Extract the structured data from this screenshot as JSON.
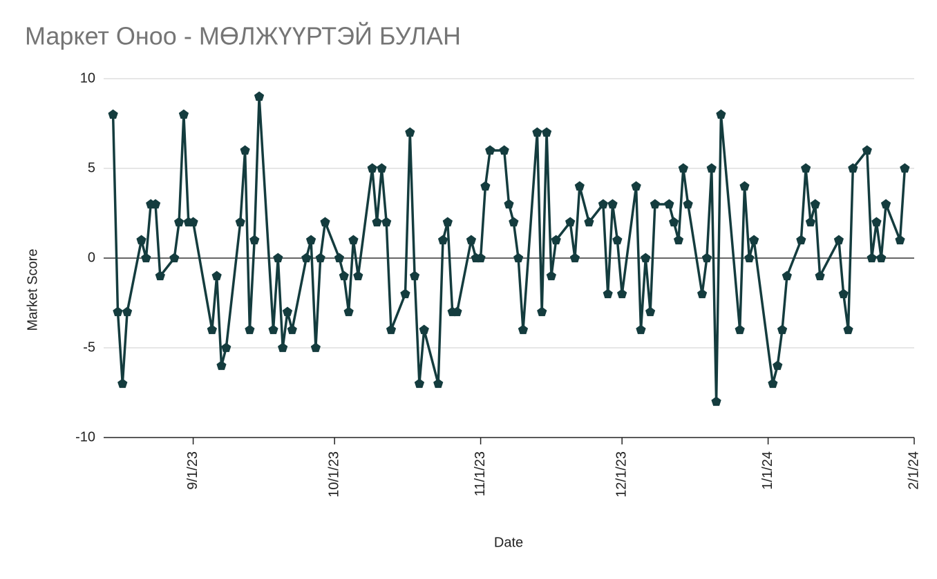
{
  "chart_data": {
    "type": "line",
    "title": "Маркет Оноо - МӨЛЖҮҮРТЭЙ БУЛАН",
    "x_label": "Date",
    "y_label": "Market Score",
    "x": [
      "8/15/23",
      "8/16/23",
      "8/17/23",
      "8/18/23",
      "8/21/23",
      "8/22/23",
      "8/23/23",
      "8/24/23",
      "8/25/23",
      "8/28/23",
      "8/29/23",
      "8/30/23",
      "8/31/23",
      "9/1/23",
      "9/5/23",
      "9/6/23",
      "9/7/23",
      "9/8/23",
      "9/11/23",
      "9/12/23",
      "9/13/23",
      "9/14/23",
      "9/15/23",
      "9/18/23",
      "9/19/23",
      "9/20/23",
      "9/21/23",
      "9/22/23",
      "9/25/23",
      "9/26/23",
      "9/27/23",
      "9/28/23",
      "9/29/23",
      "10/2/23",
      "10/3/23",
      "10/4/23",
      "10/5/23",
      "10/6/23",
      "10/9/23",
      "10/10/23",
      "10/11/23",
      "10/12/23",
      "10/13/23",
      "10/16/23",
      "10/17/23",
      "10/18/23",
      "10/19/23",
      "10/20/23",
      "10/23/23",
      "10/24/23",
      "10/25/23",
      "10/26/23",
      "10/27/23",
      "10/30/23",
      "10/31/23",
      "11/1/23",
      "11/2/23",
      "11/3/23",
      "11/6/23",
      "11/7/23",
      "11/8/23",
      "11/9/23",
      "11/10/23",
      "11/13/23",
      "11/14/23",
      "11/15/23",
      "11/16/23",
      "11/17/23",
      "11/20/23",
      "11/21/23",
      "11/22/23",
      "11/24/23",
      "11/27/23",
      "11/28/23",
      "11/29/23",
      "11/30/23",
      "12/1/23",
      "12/4/23",
      "12/5/23",
      "12/6/23",
      "12/7/23",
      "12/8/23",
      "12/11/23",
      "12/12/23",
      "12/13/23",
      "12/14/23",
      "12/15/23",
      "12/18/23",
      "12/19/23",
      "12/20/23",
      "12/21/23",
      "12/22/23",
      "12/26/23",
      "12/27/23",
      "12/28/23",
      "12/29/23",
      "1/2/24",
      "1/3/24",
      "1/4/24",
      "1/5/24",
      "1/8/24",
      "1/9/24",
      "1/10/24",
      "1/11/24",
      "1/12/24",
      "1/16/24",
      "1/17/24",
      "1/18/24",
      "1/19/24",
      "1/22/24",
      "1/23/24",
      "1/24/24",
      "1/25/24",
      "1/26/24",
      "1/29/24",
      "1/30/24"
    ],
    "series": [
      {
        "name": "Market Score",
        "color": "#143c3e",
        "values": [
          8,
          -3,
          -7,
          -3,
          1,
          0,
          3,
          3,
          -1,
          0,
          2,
          8,
          2,
          2,
          -4,
          -1,
          -6,
          -5,
          2,
          6,
          -4,
          1,
          9,
          -4,
          0,
          -5,
          -3,
          -4,
          0,
          1,
          -5,
          0,
          2,
          0,
          -1,
          -3,
          1,
          -1,
          5,
          2,
          5,
          2,
          -4,
          -2,
          7,
          -1,
          -7,
          -4,
          -7,
          1,
          2,
          -3,
          -3,
          1,
          0,
          0,
          4,
          6,
          6,
          3,
          2,
          0,
          -4,
          7,
          -3,
          7,
          -1,
          1,
          2,
          0,
          4,
          2,
          3,
          -2,
          3,
          1,
          -2,
          4,
          -4,
          0,
          -3,
          3,
          3,
          2,
          1,
          5,
          3,
          -2,
          0,
          5,
          -8,
          8,
          -4,
          4,
          0,
          1,
          -7,
          -6,
          -4,
          -1,
          1,
          5,
          2,
          3,
          -1,
          1,
          -2,
          -4,
          5,
          6,
          0,
          2,
          0,
          3,
          1,
          5
        ]
      }
    ],
    "xlim": [
      "8/13/23",
      "2/1/24"
    ],
    "xticks": [
      "9/1/23",
      "10/1/23",
      "11/1/23",
      "12/1/23",
      "1/1/24",
      "2/1/24"
    ],
    "ylim": [
      -10,
      10
    ],
    "yticks": [
      -10,
      -5,
      0,
      5,
      10
    ],
    "grid": true
  }
}
